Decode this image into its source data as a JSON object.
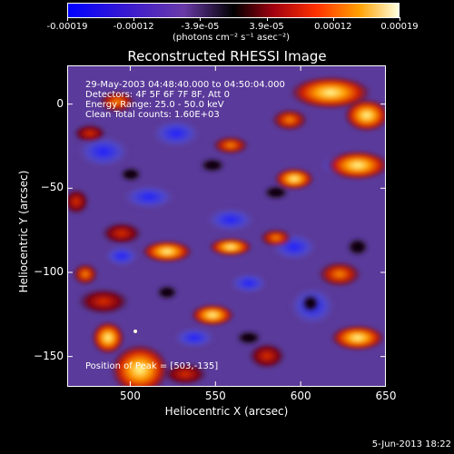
{
  "chart_data": {
    "type": "heatmap",
    "title": "Reconstructed RHESSI Image",
    "xlabel": "Heliocentric X (arcsec)",
    "ylabel": "Heliocentric Y (arcsec)",
    "xlim": [
      463,
      650
    ],
    "ylim": [
      -168,
      23
    ],
    "x_ticks": [
      500,
      550,
      600,
      650
    ],
    "y_ticks": [
      0,
      -50,
      -100,
      -150
    ],
    "colorbar": {
      "ticks": [
        "-0.00019",
        "-0.00012",
        "-3.9e-05",
        "3.9e-05",
        "0.00012",
        "0.00019"
      ],
      "units": "(photons cm⁻² s⁻¹ asec⁻²)",
      "range": [
        -0.00019,
        0.00019
      ]
    },
    "annotations": [
      "29-May-2003 04:48:40.000 to 04:50:04.000",
      "Detectors: 4F 5F 6F 7F 8F, Att 0",
      "Energy Range: 25.0 - 50.0 keV",
      "Clean     Total counts: 1.60E+03"
    ],
    "peak_text": "Position of Peak = [503,-135]",
    "peak_position": [
      503,
      -135
    ]
  },
  "footer": {
    "date": "5-Jun-2013 18:22"
  }
}
